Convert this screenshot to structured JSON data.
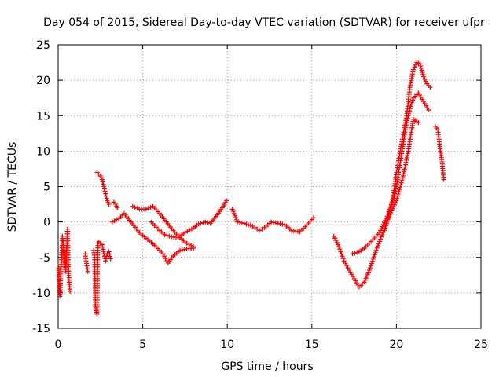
{
  "chart_data": {
    "type": "scatter",
    "title": "Day 054 of 2015, Sidereal Day-to-day VTEC variation (SDTVAR) for receiver ufpr",
    "xlabel": "GPS time / hours",
    "ylabel": "SDTVAR / TECUs",
    "xlim": [
      0,
      25
    ],
    "ylim": [
      -15,
      25
    ],
    "xticks": [
      0,
      5,
      10,
      15,
      20,
      25
    ],
    "yticks": [
      -15,
      -10,
      -5,
      0,
      5,
      10,
      15,
      20,
      25
    ],
    "grid": true,
    "marker": "+",
    "series": [
      {
        "name": "SDTVAR",
        "color": "#ff0000",
        "segments": [
          [
            [
              0.02,
              -6.5
            ],
            [
              0.05,
              -9
            ],
            [
              0.1,
              -10.5
            ],
            [
              0.15,
              -8
            ],
            [
              0.2,
              -5
            ],
            [
              0.25,
              -2
            ],
            [
              0.3,
              -3
            ],
            [
              0.35,
              -4.5
            ],
            [
              0.4,
              -5.5
            ],
            [
              0.45,
              -7
            ],
            [
              0.5,
              -4
            ],
            [
              0.55,
              -1
            ],
            [
              0.6,
              -6
            ],
            [
              0.65,
              -8.5
            ],
            [
              0.7,
              -9.8
            ]
          ],
          [
            [
              1.6,
              -4.5
            ],
            [
              1.65,
              -5.5
            ],
            [
              1.7,
              -6.2
            ],
            [
              1.75,
              -7
            ]
          ],
          [
            [
              2.1,
              -4
            ],
            [
              2.15,
              -5
            ],
            [
              2.2,
              -12
            ],
            [
              2.25,
              -12.5
            ],
            [
              2.3,
              -13
            ],
            [
              2.35,
              -3
            ],
            [
              2.4,
              -2.8
            ],
            [
              2.5,
              -3
            ],
            [
              2.6,
              -3.2
            ],
            [
              2.7,
              -4.5
            ],
            [
              2.8,
              -5.5
            ],
            [
              2.9,
              -4.5
            ],
            [
              3.0,
              -4.2
            ],
            [
              3.1,
              -5.2
            ]
          ],
          [
            [
              2.3,
              7
            ],
            [
              2.5,
              6.5
            ],
            [
              2.6,
              6
            ],
            [
              2.7,
              5
            ],
            [
              2.8,
              4
            ],
            [
              2.9,
              3
            ],
            [
              3.0,
              2.5
            ]
          ],
          [
            [
              3.3,
              2.8
            ],
            [
              3.4,
              2.5
            ],
            [
              3.5,
              2
            ]
          ],
          [
            [
              3.2,
              0
            ],
            [
              3.6,
              0.5
            ],
            [
              3.9,
              1.2
            ],
            [
              4.3,
              0
            ],
            [
              4.8,
              -1.5
            ],
            [
              5.3,
              -2.5
            ],
            [
              5.8,
              -3.5
            ],
            [
              6.2,
              -4.5
            ],
            [
              6.5,
              -5.8
            ],
            [
              6.8,
              -4.8
            ],
            [
              7.2,
              -4
            ],
            [
              7.6,
              -3.8
            ],
            [
              8.0,
              -3.7
            ]
          ],
          [
            [
              4.4,
              2.2
            ],
            [
              4.8,
              1.8
            ],
            [
              5.2,
              1.8
            ],
            [
              5.6,
              2.2
            ],
            [
              6.0,
              1.2
            ],
            [
              6.4,
              0
            ],
            [
              6.8,
              -1.2
            ],
            [
              7.2,
              -2.2
            ],
            [
              7.6,
              -3
            ],
            [
              8.0,
              -3.5
            ]
          ],
          [
            [
              5.5,
              0
            ],
            [
              5.9,
              -1
            ],
            [
              6.3,
              -1.8
            ],
            [
              6.7,
              -2.1
            ],
            [
              7.1,
              -2.2
            ],
            [
              7.5,
              -1.5
            ],
            [
              7.9,
              -1
            ],
            [
              8.3,
              -0.3
            ],
            [
              8.7,
              0
            ],
            [
              9.0,
              -0.2
            ],
            [
              9.4,
              1
            ],
            [
              9.7,
              2
            ],
            [
              9.95,
              3
            ]
          ],
          [
            [
              10.3,
              1.8
            ],
            [
              10.6,
              0
            ],
            [
              11.0,
              -0.2
            ],
            [
              11.5,
              -0.6
            ],
            [
              11.9,
              -1.2
            ],
            [
              12.2,
              -0.8
            ],
            [
              12.6,
              0
            ],
            [
              13.0,
              -0.2
            ],
            [
              13.4,
              -0.4
            ],
            [
              13.8,
              -1.2
            ],
            [
              14.3,
              -1.4
            ],
            [
              14.7,
              -0.4
            ],
            [
              15.1,
              0.6
            ]
          ],
          [
            [
              16.3,
              -2
            ],
            [
              16.6,
              -3.5
            ],
            [
              16.9,
              -5.5
            ],
            [
              17.2,
              -6.8
            ],
            [
              17.5,
              -8
            ],
            [
              17.8,
              -9.2
            ],
            [
              18.1,
              -8.5
            ],
            [
              18.4,
              -6.8
            ],
            [
              18.8,
              -4
            ],
            [
              19.2,
              -1.5
            ],
            [
              19.6,
              1
            ],
            [
              20.0,
              3
            ],
            [
              20.4,
              6.5
            ],
            [
              20.7,
              10
            ],
            [
              20.9,
              13
            ],
            [
              21.0,
              14.5
            ],
            [
              21.3,
              14
            ]
          ],
          [
            [
              17.4,
              -4.5
            ],
            [
              17.8,
              -4.2
            ],
            [
              18.2,
              -3.5
            ],
            [
              18.6,
              -2.5
            ],
            [
              19.0,
              -1.5
            ],
            [
              19.4,
              0.5
            ],
            [
              19.8,
              3
            ],
            [
              20.0,
              5
            ],
            [
              20.2,
              8
            ],
            [
              20.4,
              11
            ],
            [
              20.6,
              14
            ],
            [
              20.8,
              16
            ],
            [
              21.0,
              17.5
            ],
            [
              21.3,
              18.2
            ],
            [
              21.6,
              17
            ],
            [
              21.9,
              15.8
            ]
          ],
          [
            [
              19.3,
              -1.2
            ],
            [
              19.5,
              0.5
            ],
            [
              19.8,
              3.5
            ],
            [
              20.0,
              7
            ],
            [
              20.3,
              11
            ],
            [
              20.6,
              15
            ],
            [
              20.8,
              19
            ],
            [
              21.0,
              21.5
            ],
            [
              21.2,
              22.5
            ],
            [
              21.4,
              22.3
            ],
            [
              21.6,
              20.5
            ],
            [
              21.8,
              19.5
            ],
            [
              22.0,
              19
            ]
          ],
          [
            [
              22.3,
              13.5
            ],
            [
              22.45,
              13
            ],
            [
              22.6,
              10
            ],
            [
              22.7,
              8.5
            ],
            [
              22.8,
              6
            ]
          ]
        ]
      }
    ]
  }
}
